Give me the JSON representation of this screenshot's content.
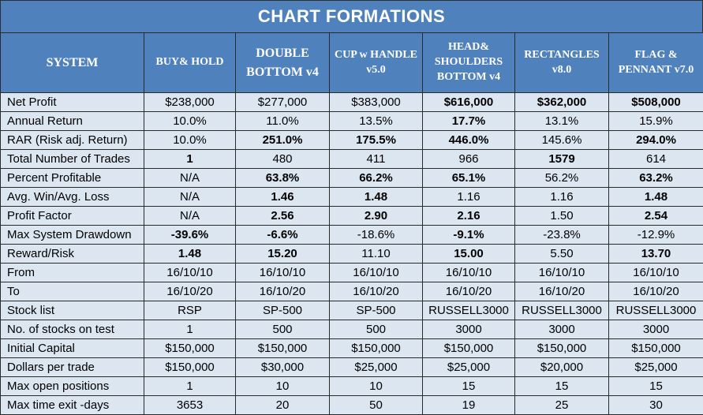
{
  "title": "CHART FORMATIONS",
  "header": {
    "system": "SYSTEM",
    "columns": [
      "BUY& HOLD",
      "DOUBLE BOTTOM v4",
      "CUP w HANDLE v5.0",
      "HEAD& SHOULDERS BOTTOM v4",
      "RECTANGLES v8.0",
      "FLAG & PENNANT v7.0"
    ]
  },
  "rows": [
    {
      "label": "Net Profit",
      "values": [
        "$238,000",
        "$277,000",
        "$383,000",
        "$616,000",
        "$362,000",
        "$508,000"
      ]
    },
    {
      "label": "Annual Return",
      "values": [
        "10.0%",
        "11.0%",
        "13.5%",
        "17.7%",
        "13.1%",
        "15.9%"
      ]
    },
    {
      "label": "RAR (Risk adj. Return)",
      "values": [
        "10.0%",
        "251.0%",
        "175.5%",
        "446.0%",
        "145.6%",
        "294.0%"
      ]
    },
    {
      "label": "Total Number of Trades",
      "values": [
        "1",
        "480",
        "411",
        "966",
        "1579",
        "614"
      ]
    },
    {
      "label": "Percent Profitable",
      "values": [
        "N/A",
        "63.8%",
        "66.2%",
        "65.1%",
        "56.2%",
        "63.2%"
      ]
    },
    {
      "label": "Avg. Win/Avg. Loss",
      "values": [
        "N/A",
        "1.46",
        "1.48",
        "1.16",
        "1.16",
        "1.48"
      ]
    },
    {
      "label": "Profit Factor",
      "values": [
        "N/A",
        "2.56",
        "2.90",
        "2.16",
        "1.50",
        "2.54"
      ]
    },
    {
      "label": "Max System Drawdown",
      "values": [
        "-39.6%",
        "-6.6%",
        "-18.6%",
        "-9.1%",
        "-23.8%",
        "-12.9%"
      ]
    },
    {
      "label": "Reward/Risk",
      "values": [
        "1.48",
        "15.20",
        "11.10",
        "15.00",
        "5.50",
        "13.70"
      ]
    },
    {
      "label": "From",
      "values": [
        "16/10/10",
        "16/10/10",
        "16/10/10",
        "16/10/10",
        "16/10/10",
        "16/10/10"
      ]
    },
    {
      "label": "To",
      "values": [
        "16/10/20",
        "16/10/20",
        "16/10/20",
        "16/10/20",
        "16/10/20",
        "16/10/20"
      ]
    },
    {
      "label": "Stock list",
      "values": [
        "RSP",
        "SP-500",
        "SP-500",
        "RUSSELL3000",
        "RUSSELL3000",
        "RUSSELL3000"
      ]
    },
    {
      "label": "No. of stocks on test",
      "values": [
        "1",
        "500",
        "500",
        "3000",
        "3000",
        "3000"
      ]
    },
    {
      "label": "Initial Capital",
      "values": [
        "$150,000",
        "$150,000",
        "$150,000",
        "$150,000",
        "$150,000",
        "$150,000"
      ]
    },
    {
      "label": "Dollars per trade",
      "values": [
        "$150,000",
        "$30,000",
        "$25,000",
        "$25,000",
        "$20,000",
        "$25,000"
      ]
    },
    {
      "label": "Max open positions",
      "values": [
        "1",
        "10",
        "10",
        "15",
        "15",
        "15"
      ]
    },
    {
      "label": "Max time exit -days",
      "values": [
        "3653",
        "20",
        "50",
        "19",
        "25",
        "30"
      ]
    }
  ],
  "colors": {
    "header_bg": "#4f81bd",
    "cell_bg": "#dce6f1",
    "highlight_green": "#00b050",
    "highlight_red": "#ff0000"
  }
}
